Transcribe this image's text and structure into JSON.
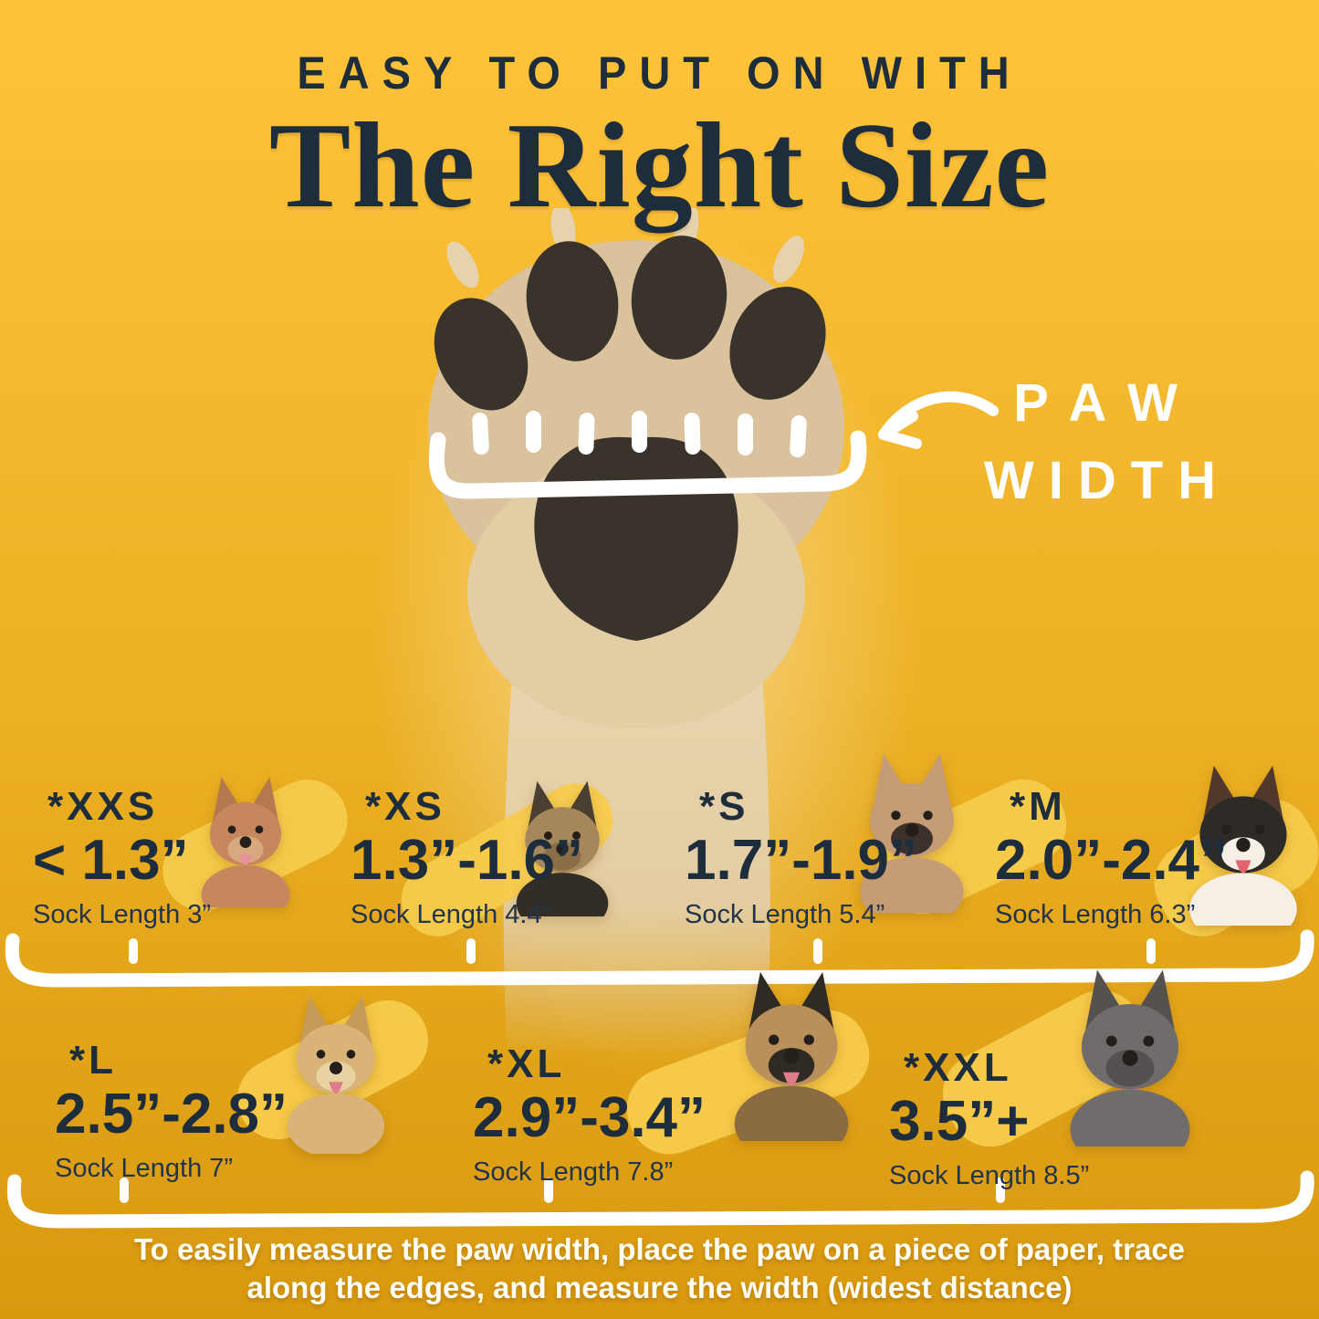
{
  "colors": {
    "bg_top": "#FDC33B",
    "bg_mid": "#EDB125",
    "bg_bottom": "#D8990F",
    "ink": "#1E2D3C",
    "white": "#FFFFFF",
    "brush": "#F7CB4C",
    "paw_fur": "#D9C29C",
    "paw_pad": "#3A332C",
    "leg_top": "#EBD9B4",
    "leg_bottom": "#E0C79B"
  },
  "header": {
    "kicker": "EASY TO PUT ON WITH",
    "title": "The Right Size"
  },
  "paw_annotation": {
    "line1": "PAW",
    "line2": "WIDTH"
  },
  "sizes": [
    {
      "code": "*XXS",
      "range": "< 1.3”",
      "sock": "Sock Length 3”",
      "breed": "chihuahua",
      "dog": {
        "ear": "#B5794F",
        "head": "#C6875F",
        "muzzle": "#D8A87E",
        "body": "#C6875F",
        "tongue": "#E98FA0"
      }
    },
    {
      "code": "*XS",
      "range": "1.3”-1.6”",
      "sock": "Sock Length 4.4”",
      "breed": "yorkshire-terrier-puppy",
      "dog": {
        "ear": "#4A3F33",
        "head": "#A5875B",
        "muzzle": "#8A6E47",
        "body": "#332D27",
        "tongue": null
      }
    },
    {
      "code": "*S",
      "range": "1.7”-1.9”",
      "sock": "Sock Length 5.4”",
      "breed": "french-bulldog",
      "dog": {
        "ear": "#C49C76",
        "head": "#C49C76",
        "muzzle": "#3C322B",
        "body": "#C49C76",
        "tongue": null
      }
    },
    {
      "code": "*M",
      "range": "2.0”-2.4”",
      "sock": "Sock Length 6.3”",
      "breed": "australian-shepherd",
      "dog": {
        "ear": "#50392A",
        "head": "#2E2A26",
        "muzzle": "#F5EFE6",
        "body": "#F5EFE6",
        "tongue": "#E2646E"
      }
    },
    {
      "code": "*L",
      "range": "2.5”-2.8”",
      "sock": "Sock Length 7”",
      "breed": "golden-retriever",
      "dog": {
        "ear": "#C69A58",
        "head": "#D9B377",
        "muzzle": "#E8D2A2",
        "body": "#D9B377",
        "tongue": "#DE7C8A"
      }
    },
    {
      "code": "*XL",
      "range": "2.9”-3.4”",
      "sock": "Sock Length 7.8”",
      "breed": "german-shepherd",
      "dog": {
        "ear": "#2F2A24",
        "head": "#B9905C",
        "muzzle": "#2F2A24",
        "body": "#8A6B42",
        "tongue": "#DE7C8A"
      }
    },
    {
      "code": "*XXL",
      "range": "3.5”+",
      "sock": "Sock Length 8.5”",
      "breed": "great-dane",
      "dog": {
        "ear": "#55514F",
        "head": "#6F6C6B",
        "muzzle": "#555150",
        "body": "#6F6C6B",
        "tongue": null
      }
    }
  ],
  "footer": {
    "line1": "To easily measure the paw width, place the paw on a piece of paper, trace",
    "line2": "along the edges, and measure the width (widest distance)"
  }
}
